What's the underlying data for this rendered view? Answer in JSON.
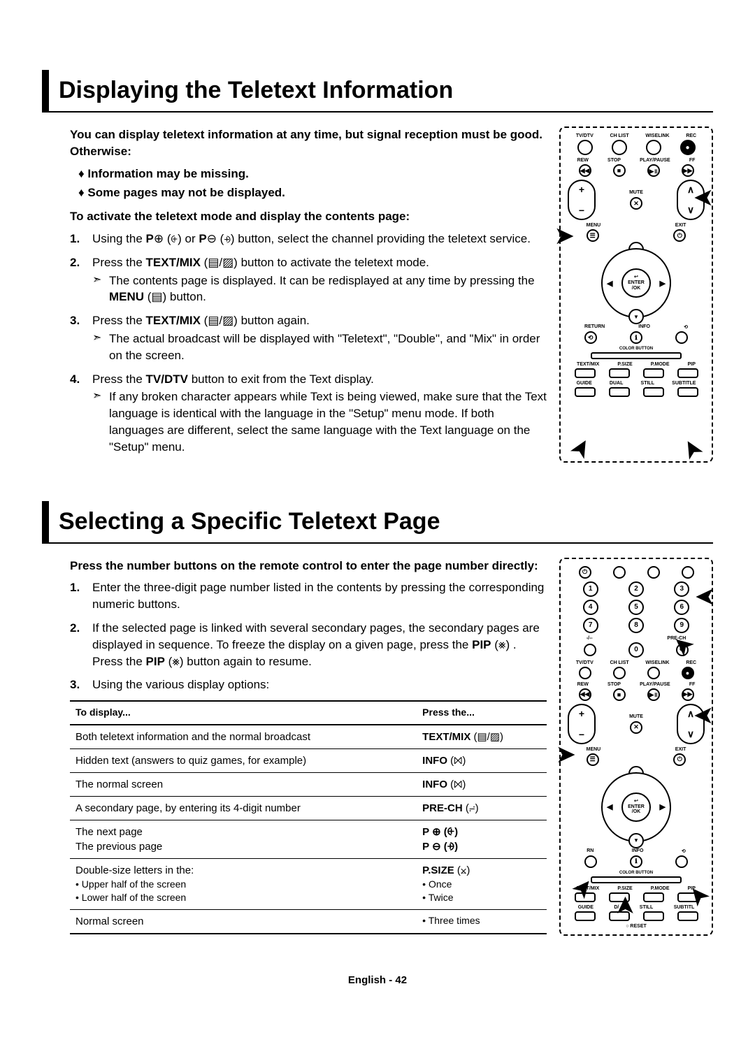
{
  "section1": {
    "title": "Displaying the Teletext Information",
    "intro": "You can display teletext information at any time, but signal reception must be good. Otherwise:",
    "bullets": [
      "Information may be missing.",
      "Some pages may not be displayed."
    ],
    "activate_head": "To activate the teletext mode and display the contents page:",
    "steps": [
      {
        "num": "1.",
        "main": "Using the P⊕ (⨭) or P⊖ (⨮) button, select the channel providing the teletext service."
      },
      {
        "num": "2.",
        "main_pre": "Press the ",
        "main_bold": "TEXT/MIX",
        "main_post": " (▤/▨) button to activate the teletext mode.",
        "arrow_pre": "The contents page is displayed. It can be redisplayed at any time by pressing the ",
        "arrow_bold": "MENU",
        "arrow_post": " (▤) button."
      },
      {
        "num": "3.",
        "main_pre": "Press the ",
        "main_bold": "TEXT/MIX",
        "main_post": " (▤/▨) button again.",
        "arrow": "The actual broadcast will be displayed with \"Teletext\", \"Double\", and \"Mix\" in order on the screen."
      },
      {
        "num": "4.",
        "main_pre": "Press the ",
        "main_bold": "TV/DTV",
        "main_post": " button to exit from the Text display.",
        "arrow": "If any broken character appears while Text is being viewed, make sure that the Text language is identical with the language in the \"Setup\" menu mode. If both languages are different, select the same language with the Text language on the \"Setup\" menu."
      }
    ]
  },
  "section2": {
    "title": "Selecting a Specific Teletext Page",
    "intro": "Press the number buttons on the remote control to enter the page number directly:",
    "steps": [
      {
        "num": "1.",
        "main": "Enter the three-digit page number listed in the contents by pressing the corresponding numeric buttons."
      },
      {
        "num": "2.",
        "main_pre": "If the selected page is linked with several secondary pages, the secondary pages are displayed in sequence. To freeze the display on a given page, press the ",
        "main_bold": "PIP",
        "main_mid": " (⨳) . Press the ",
        "main_bold2": "PIP",
        "main_post": " (⨳) button again to resume."
      },
      {
        "num": "3.",
        "main": "Using the various display options:"
      }
    ],
    "table": {
      "headers": [
        "To display...",
        "Press the..."
      ],
      "rows": [
        {
          "left": "Both teletext information and the normal broadcast",
          "right_bold": "TEXT/MIX",
          "right_sym": " (▤/▨)"
        },
        {
          "left": "Hidden text (answers to quiz games, for example)",
          "right_bold": "INFO",
          "right_sym": " (⨝)"
        },
        {
          "left": "The normal screen",
          "right_bold": "INFO",
          "right_sym": " (⨝)"
        },
        {
          "left": "A secondary page, by entering its 4-digit number",
          "right_bold": "PRE-CH",
          "right_sym": " (⨬)"
        },
        {
          "left_lines": [
            "The next page",
            "The previous page"
          ],
          "right_lines_bold": [
            "P ⊕ (⨭)",
            "P ⊖ (⨮)"
          ]
        },
        {
          "left": "Double-size letters in the:",
          "left_subs": [
            "Upper half of the screen",
            "Lower half of the screen"
          ],
          "right_bold": "P.SIZE",
          "right_sym": " (⨲)",
          "right_subs": [
            "Once",
            "Twice"
          ]
        },
        {
          "left": "Normal screen",
          "right_subs": [
            "Three times"
          ],
          "last": true
        }
      ]
    }
  },
  "remote": {
    "top_labels": [
      "TV/DTV",
      "CH LIST",
      "WISELINK",
      "REC"
    ],
    "play_labels": [
      "REW",
      "STOP",
      "PLAY/PAUSE",
      "FF"
    ],
    "mute": "MUTE",
    "menu": "MENU",
    "exit": "EXIT",
    "enter": "ENTER\n/OK",
    "return": "RETURN",
    "info": "INFO",
    "color": "COLOR BUTTON",
    "mode_labels": [
      "TEXT/MIX",
      "P.SIZE",
      "P.MODE",
      "PIP"
    ],
    "bottom_labels": [
      "GUIDE",
      "DUAL",
      "STILL",
      "SUBTITLE"
    ],
    "numbers": [
      "1",
      "2",
      "3",
      "4",
      "5",
      "6",
      "7",
      "8",
      "9",
      "0"
    ],
    "prech": "PRE-CH",
    "reset": "RESET"
  },
  "footer": "English - 42"
}
